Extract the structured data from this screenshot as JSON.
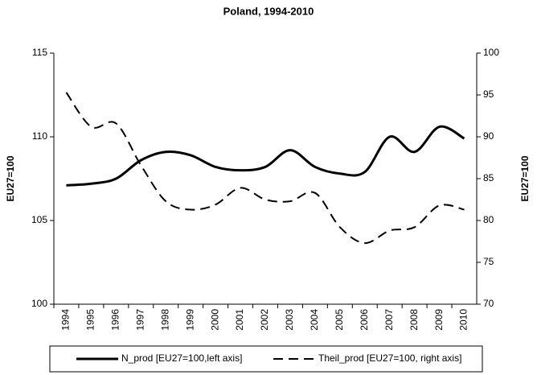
{
  "chart_data": {
    "type": "line",
    "title": "Poland, 1994-2010",
    "categories": [
      "1994",
      "1995",
      "1996",
      "1997",
      "1998",
      "1999",
      "2000",
      "2001",
      "2002",
      "2003",
      "2004",
      "2005",
      "2006",
      "2007",
      "2008",
      "2009",
      "2010"
    ],
    "series": [
      {
        "name": "N_prod [EU27=100,left axis]",
        "color": "#000000",
        "dash": "solid",
        "axis": "y",
        "values": [
          107.1,
          107.2,
          107.5,
          108.6,
          109.1,
          108.9,
          108.2,
          108.0,
          108.2,
          109.2,
          108.2,
          107.8,
          107.9,
          110.0,
          109.1,
          110.6,
          109.9
        ]
      },
      {
        "name": "Theil_prod [EU27=100, right axis]",
        "color": "#000000",
        "dash": "dashed",
        "axis": "y2",
        "values": [
          95.3,
          91.2,
          91.6,
          86.6,
          82.3,
          81.3,
          81.9,
          83.9,
          82.5,
          82.3,
          83.3,
          79.2,
          77.3,
          78.8,
          79.2,
          81.8,
          81.3
        ]
      }
    ],
    "ylabel": "EU27=100",
    "y2label": "EU27=100",
    "ylim": [
      100,
      115
    ],
    "yticks": [
      100,
      105,
      110,
      115
    ],
    "y2lim": [
      70,
      100
    ],
    "y2ticks": [
      70,
      75,
      80,
      85,
      90,
      95,
      100
    ],
    "legend": "bottom"
  }
}
